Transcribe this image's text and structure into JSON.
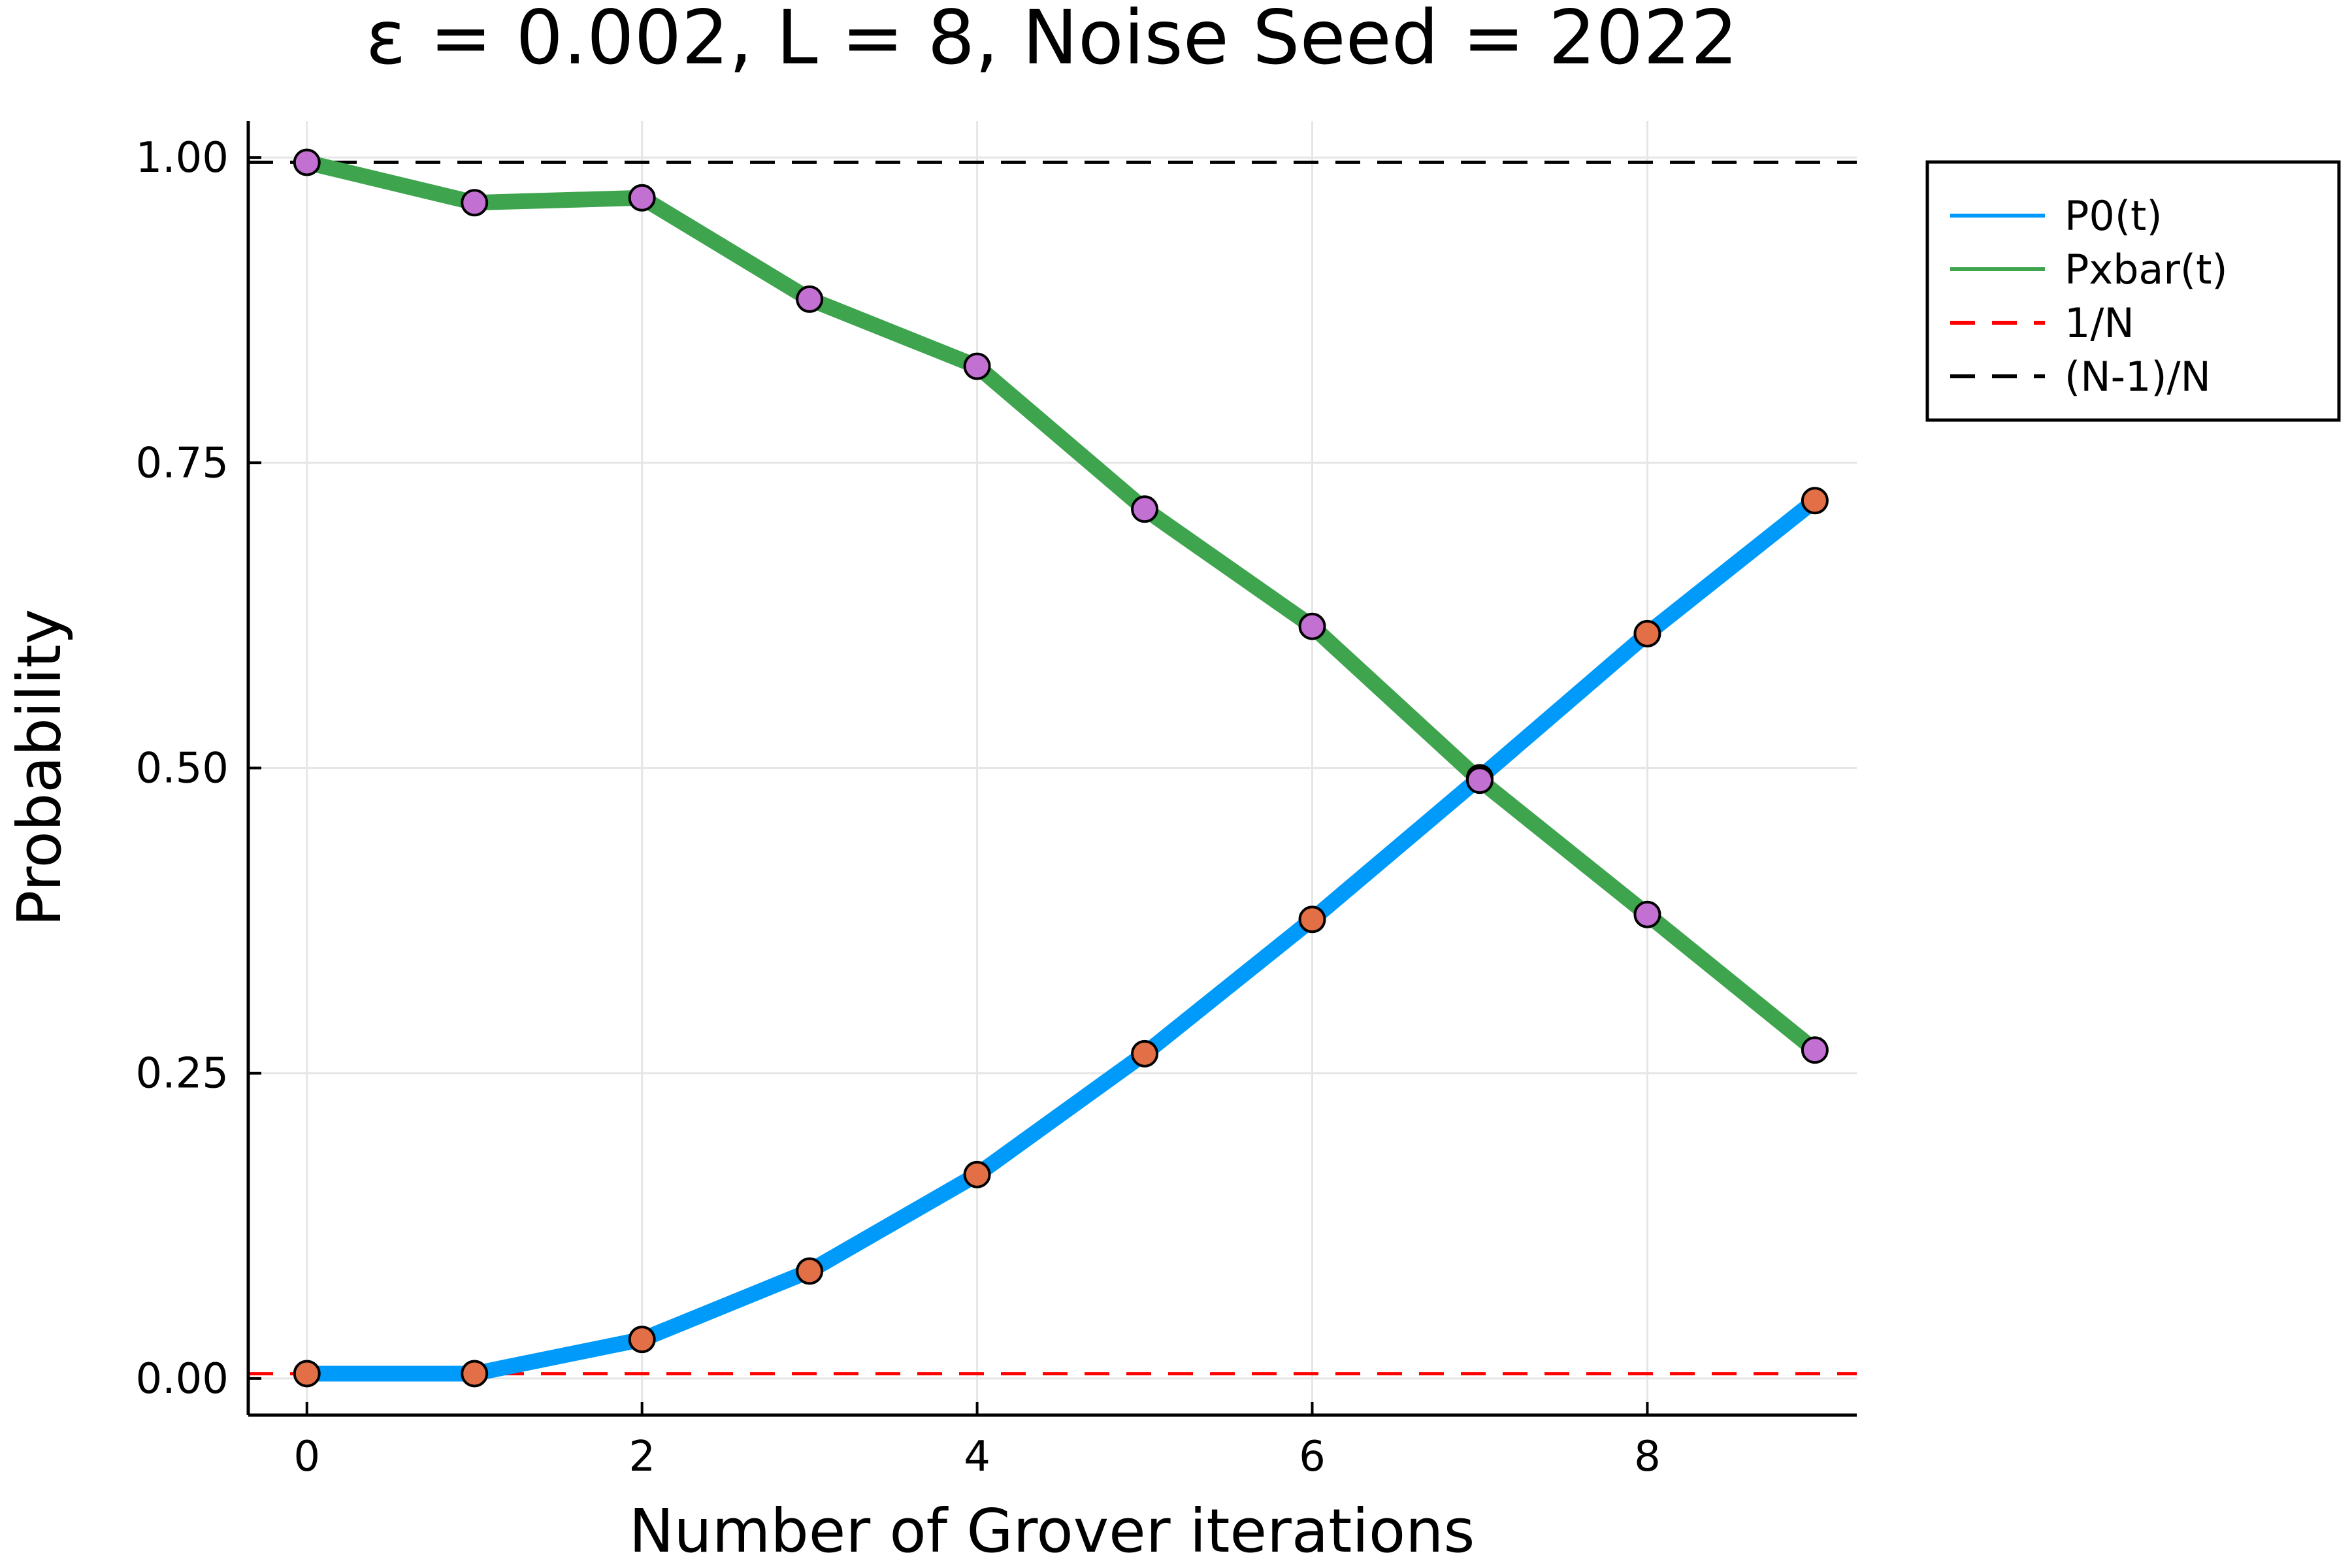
{
  "chart_data": {
    "type": "line",
    "title": "ε = 0.002, L = 8, Noise Seed = 2022",
    "xlabel": "Number of Grover iterations",
    "ylabel": "Probability",
    "xlim": [
      -0.35,
      9.25
    ],
    "ylim": [
      -0.03,
      1.03
    ],
    "x_ticks": [
      0,
      2,
      4,
      6,
      8
    ],
    "x_tick_labels": [
      "0",
      "2",
      "4",
      "6",
      "8"
    ],
    "y_ticks": [
      0.0,
      0.25,
      0.5,
      0.75,
      1.0
    ],
    "y_tick_labels": [
      "0.00",
      "0.25",
      "0.50",
      "0.75",
      "1.00"
    ],
    "grid": true,
    "legend_position": "outer-top-right",
    "x": [
      0,
      1,
      2,
      3,
      4,
      5,
      6,
      7,
      8,
      9
    ],
    "series": [
      {
        "name": "P0(t)",
        "color": "#009AFA",
        "style": "solid",
        "marker_color": "#E26F46",
        "values": [
          0.004,
          0.004,
          0.032,
          0.088,
          0.167,
          0.266,
          0.376,
          0.492,
          0.61,
          0.719
        ]
      },
      {
        "name": "Pxbar(t)",
        "color": "#3EA44E",
        "style": "solid",
        "marker_color": "#C271D2",
        "values": [
          0.996,
          0.963,
          0.967,
          0.884,
          0.829,
          0.712,
          0.616,
          0.49,
          0.38,
          0.269
        ]
      },
      {
        "name": "1/N",
        "color": "#FF0000",
        "style": "dashed",
        "value": 0.0039
      },
      {
        "name": "(N-1)/N",
        "color": "#000000",
        "style": "dashed",
        "value": 0.9961
      }
    ]
  }
}
